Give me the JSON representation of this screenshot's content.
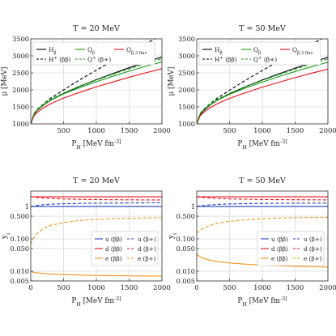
{
  "chart_data": [
    {
      "type": "line",
      "title": "T = 20 MeV",
      "xlabel": "P_H [MeV fm^-3]",
      "ylabel": "μ [MeV]",
      "xlim": [
        0,
        2000
      ],
      "ylim": [
        1000,
        3500
      ],
      "xticks": [
        500,
        1000,
        1500,
        2000
      ],
      "yticks": [
        1000,
        1500,
        2000,
        2500,
        3000,
        3500
      ],
      "grid": true,
      "legend": {
        "placement": "top-left",
        "entries": [
          "H_β",
          "Q_β",
          "Q_{β,3 flav}",
          "H^+ (ββ)",
          "Q^+ (β+)"
        ]
      },
      "x": [
        0,
        50,
        100,
        200,
        300,
        500,
        750,
        1000,
        1250,
        1500,
        1750,
        2000
      ],
      "series": [
        {
          "name": "H_β",
          "color": "#000000",
          "dash": "solid",
          "values": [
            1000,
            1280,
            1400,
            1560,
            1690,
            1890,
            2110,
            2300,
            2480,
            2650,
            2810,
            2970
          ]
        },
        {
          "name": "Q_β",
          "color": "#1a9a1a",
          "dash": "solid",
          "values": [
            1000,
            1290,
            1410,
            1570,
            1690,
            1880,
            2070,
            2240,
            2400,
            2550,
            2690,
            2820
          ]
        },
        {
          "name": "Q_{β,3 flav}",
          "color": "#e8101a",
          "dash": "solid",
          "values": [
            1000,
            1240,
            1340,
            1480,
            1590,
            1760,
            1930,
            2090,
            2230,
            2370,
            2500,
            2620
          ]
        },
        {
          "name": "H^+ (ββ)",
          "color": "#000000",
          "dash": "dashed",
          "values": [
            1000,
            1300,
            1420,
            1600,
            1750,
            2000,
            2300,
            2580,
            2850,
            3110,
            3360,
            3600
          ]
        },
        {
          "name": "Q^+ (β+)",
          "color": "#1a9a1a",
          "dash": "dashed",
          "values": [
            1000,
            1310,
            1430,
            1600,
            1720,
            1910,
            2110,
            2290,
            2460,
            2620,
            2770,
            2920
          ]
        }
      ]
    },
    {
      "type": "line",
      "title": "T = 50 MeV",
      "xlabel": "P_H [MeV fm^-3]",
      "ylabel": "μ [MeV]",
      "xlim": [
        0,
        2000
      ],
      "ylim": [
        1000,
        3500
      ],
      "xticks": [
        500,
        1000,
        1500,
        2000
      ],
      "yticks": [
        1000,
        1500,
        2000,
        2500,
        3000,
        3500
      ],
      "grid": true,
      "legend": {
        "placement": "top-left",
        "entries": [
          "H_β",
          "Q_β",
          "Q_{β,3 flav}",
          "H^+ (ββ)",
          "Q^+ (β+)"
        ]
      },
      "x": [
        0,
        50,
        100,
        200,
        300,
        500,
        750,
        1000,
        1250,
        1500,
        1750,
        2000
      ],
      "series": [
        {
          "name": "H_β",
          "color": "#000000",
          "dash": "solid",
          "values": [
            1000,
            1260,
            1380,
            1550,
            1680,
            1880,
            2100,
            2290,
            2470,
            2640,
            2800,
            2960
          ]
        },
        {
          "name": "Q_β",
          "color": "#1a9a1a",
          "dash": "solid",
          "values": [
            1000,
            1280,
            1400,
            1560,
            1680,
            1870,
            2060,
            2230,
            2390,
            2540,
            2680,
            2810
          ]
        },
        {
          "name": "Q_{β,3 flav}",
          "color": "#e8101a",
          "dash": "solid",
          "values": [
            1000,
            1230,
            1330,
            1470,
            1580,
            1750,
            1920,
            2080,
            2220,
            2360,
            2490,
            2610
          ]
        },
        {
          "name": "H^+ (ββ)",
          "color": "#000000",
          "dash": "dashed",
          "values": [
            1000,
            1290,
            1410,
            1590,
            1740,
            1990,
            2290,
            2570,
            2840,
            3100,
            3350,
            3590
          ]
        },
        {
          "name": "Q^+ (β+)",
          "color": "#1a9a1a",
          "dash": "dashed",
          "values": [
            1000,
            1300,
            1420,
            1590,
            1710,
            1900,
            2100,
            2280,
            2450,
            2610,
            2760,
            2910
          ]
        }
      ]
    },
    {
      "type": "line",
      "title": "T = 20 MeV",
      "xlabel": "P_H [MeV fm^-3]",
      "ylabel": "y_i",
      "scale": "log",
      "xlim": [
        0,
        2000
      ],
      "ylim": [
        0.005,
        3
      ],
      "xticks": [
        0,
        500,
        1000,
        1500,
        2000
      ],
      "yticks": [
        0.005,
        0.01,
        0.05,
        0.1,
        0.5,
        1
      ],
      "ytick_labels": [
        "0.005",
        "0.010",
        "0.050",
        "0.100",
        "0.500",
        "1"
      ],
      "grid": true,
      "legend": {
        "placement": "middle-right",
        "entries": [
          "u (ββ)",
          "u (β+)",
          "d (ββ)",
          "d (β+)",
          "e (ββ)",
          "e (β+)"
        ]
      },
      "x": [
        0,
        50,
        100,
        200,
        300,
        500,
        750,
        1000,
        1250,
        1500,
        1750,
        2000
      ],
      "series": [
        {
          "name": "u (ββ)",
          "color": "#1f3fbf",
          "dash": "solid",
          "values": [
            1,
            1,
            1,
            1,
            1,
            1,
            1,
            1,
            1,
            1,
            1,
            1
          ]
        },
        {
          "name": "u (β+)",
          "color": "#1f3fbf",
          "dash": "dashed",
          "values": [
            0.98,
            1.04,
            1.08,
            1.14,
            1.18,
            1.22,
            1.25,
            1.27,
            1.28,
            1.29,
            1.3,
            1.3
          ]
        },
        {
          "name": "d (ββ)",
          "color": "#e8101a",
          "dash": "solid",
          "values": [
            2.0,
            2.0,
            2.0,
            2.0,
            2.0,
            2.0,
            2.0,
            2.0,
            2.0,
            2.0,
            2.0,
            2.0
          ]
        },
        {
          "name": "d (β+)",
          "color": "#e8101a",
          "dash": "dashed",
          "values": [
            2.05,
            1.96,
            1.9,
            1.82,
            1.77,
            1.71,
            1.67,
            1.64,
            1.62,
            1.61,
            1.6,
            1.59
          ]
        },
        {
          "name": "e (ββ)",
          "color": "#f5961e",
          "dash": "solid",
          "values": [
            0.0098,
            0.0092,
            0.0089,
            0.0085,
            0.0082,
            0.0079,
            0.0076,
            0.0074,
            0.0073,
            0.0072,
            0.0071,
            0.0071
          ]
        },
        {
          "name": "e (β+)",
          "color": "#f5961e",
          "dash": "dashed",
          "values": [
            0.07,
            0.11,
            0.15,
            0.21,
            0.26,
            0.32,
            0.37,
            0.4,
            0.42,
            0.43,
            0.44,
            0.45
          ]
        }
      ]
    },
    {
      "type": "line",
      "title": "T = 50 MeV",
      "xlabel": "P_H [MeV fm^-3]",
      "ylabel": "y_i",
      "scale": "log",
      "xlim": [
        0,
        2000
      ],
      "ylim": [
        0.005,
        3
      ],
      "xticks": [
        0,
        500,
        1000,
        1500,
        2000
      ],
      "yticks": [
        0.005,
        0.01,
        0.05,
        0.1,
        0.5,
        1
      ],
      "ytick_labels": [
        "0.005",
        "0.010",
        "0.050",
        "0.100",
        "0.500",
        "1"
      ],
      "grid": true,
      "legend": {
        "placement": "middle-right",
        "entries": [
          "u (ββ)",
          "u (β+)",
          "d (ββ)",
          "d (β+)",
          "e (ββ)",
          "e (β+)"
        ]
      },
      "x": [
        0,
        50,
        100,
        200,
        300,
        500,
        750,
        1000,
        1250,
        1500,
        1750,
        2000
      ],
      "series": [
        {
          "name": "u (ββ)",
          "color": "#1f3fbf",
          "dash": "solid",
          "values": [
            1,
            1,
            1,
            1,
            1,
            1,
            1,
            1,
            1,
            1,
            1,
            1
          ]
        },
        {
          "name": "u (β+)",
          "color": "#1f3fbf",
          "dash": "dashed",
          "values": [
            1.0,
            1.04,
            1.07,
            1.12,
            1.16,
            1.2,
            1.23,
            1.25,
            1.26,
            1.27,
            1.28,
            1.28
          ]
        },
        {
          "name": "d (ββ)",
          "color": "#e8101a",
          "dash": "solid",
          "values": [
            2.0,
            2.0,
            2.0,
            2.0,
            2.0,
            2.0,
            2.0,
            2.0,
            2.0,
            2.0,
            2.0,
            2.0
          ]
        },
        {
          "name": "d (β+)",
          "color": "#e8101a",
          "dash": "dashed",
          "values": [
            2.0,
            1.95,
            1.9,
            1.83,
            1.78,
            1.72,
            1.68,
            1.65,
            1.63,
            1.62,
            1.61,
            1.6
          ]
        },
        {
          "name": "e (ββ)",
          "color": "#f5961e",
          "dash": "solid",
          "values": [
            0.033,
            0.028,
            0.025,
            0.022,
            0.02,
            0.018,
            0.0165,
            0.0155,
            0.0148,
            0.0142,
            0.0138,
            0.0135
          ]
        },
        {
          "name": "e (β+)",
          "color": "#f5961e",
          "dash": "dashed",
          "values": [
            0.15,
            0.18,
            0.21,
            0.26,
            0.3,
            0.35,
            0.39,
            0.42,
            0.44,
            0.45,
            0.46,
            0.46
          ]
        }
      ]
    }
  ]
}
